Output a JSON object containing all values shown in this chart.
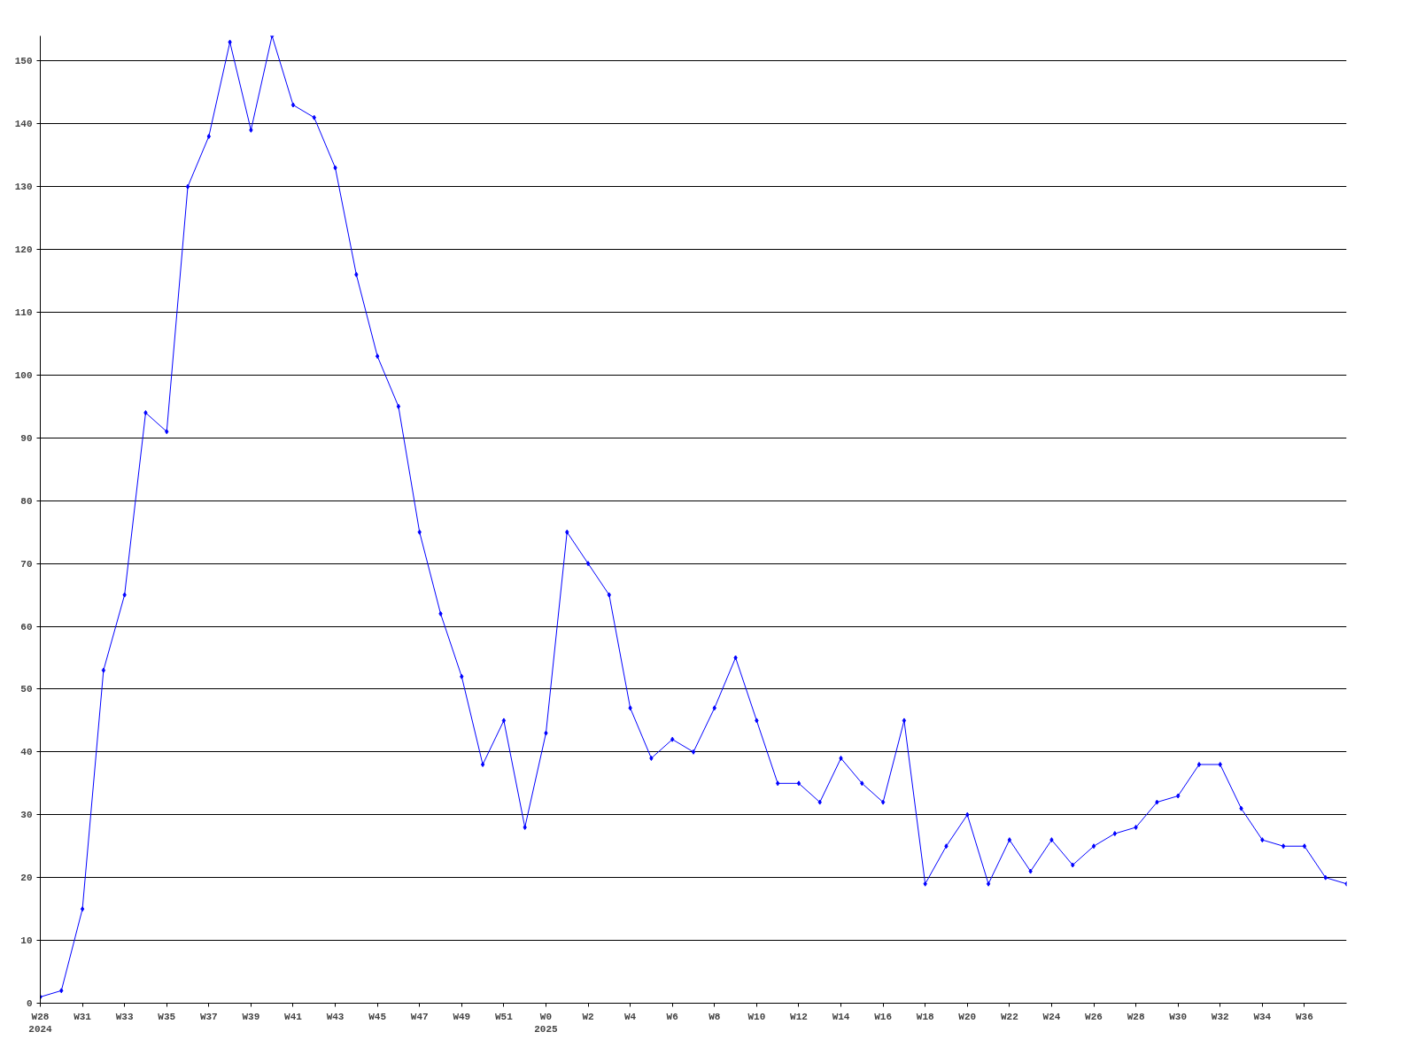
{
  "chart_data": {
    "type": "line",
    "categories": [
      "W28\n2024",
      null,
      "W31",
      null,
      "W33",
      null,
      "W35",
      null,
      "W37",
      null,
      "W39",
      null,
      "W41",
      null,
      "W43",
      null,
      "W45",
      null,
      "W47",
      null,
      "W49",
      null,
      "W51",
      null,
      "W0\n2025",
      null,
      "W2",
      null,
      "W4",
      null,
      "W6",
      null,
      "W8",
      null,
      "W10",
      null,
      "W12",
      null,
      "W14",
      null,
      "W16",
      null,
      "W18",
      null,
      "W20",
      null,
      "W22",
      null,
      "W24",
      null,
      "W26",
      null,
      "W28",
      null,
      "W30",
      null,
      "W32",
      null,
      "W34",
      null,
      "W36",
      null,
      null
    ],
    "series": [
      {
        "color": "#0000ff",
        "values": [
          1,
          2,
          15,
          53,
          65,
          94,
          91,
          130,
          138,
          153,
          139,
          154,
          143,
          141,
          133,
          116,
          103,
          95,
          75,
          62,
          52,
          38,
          45,
          28,
          43,
          75,
          70,
          65,
          47,
          39,
          42,
          40,
          47,
          55,
          45,
          35,
          35,
          32,
          39,
          35,
          32,
          45,
          19,
          25,
          30,
          19,
          26,
          21,
          26,
          22,
          25,
          27,
          28,
          32,
          33,
          38,
          38,
          31,
          26,
          25,
          25,
          20,
          19
        ]
      }
    ],
    "ylim": [
      0,
      154
    ],
    "yticks": [
      0,
      10,
      20,
      30,
      40,
      50,
      60,
      70,
      80,
      90,
      100,
      110,
      120,
      130,
      140,
      150
    ],
    "grid": "y",
    "marker": "diamond",
    "line_style": "solid"
  }
}
